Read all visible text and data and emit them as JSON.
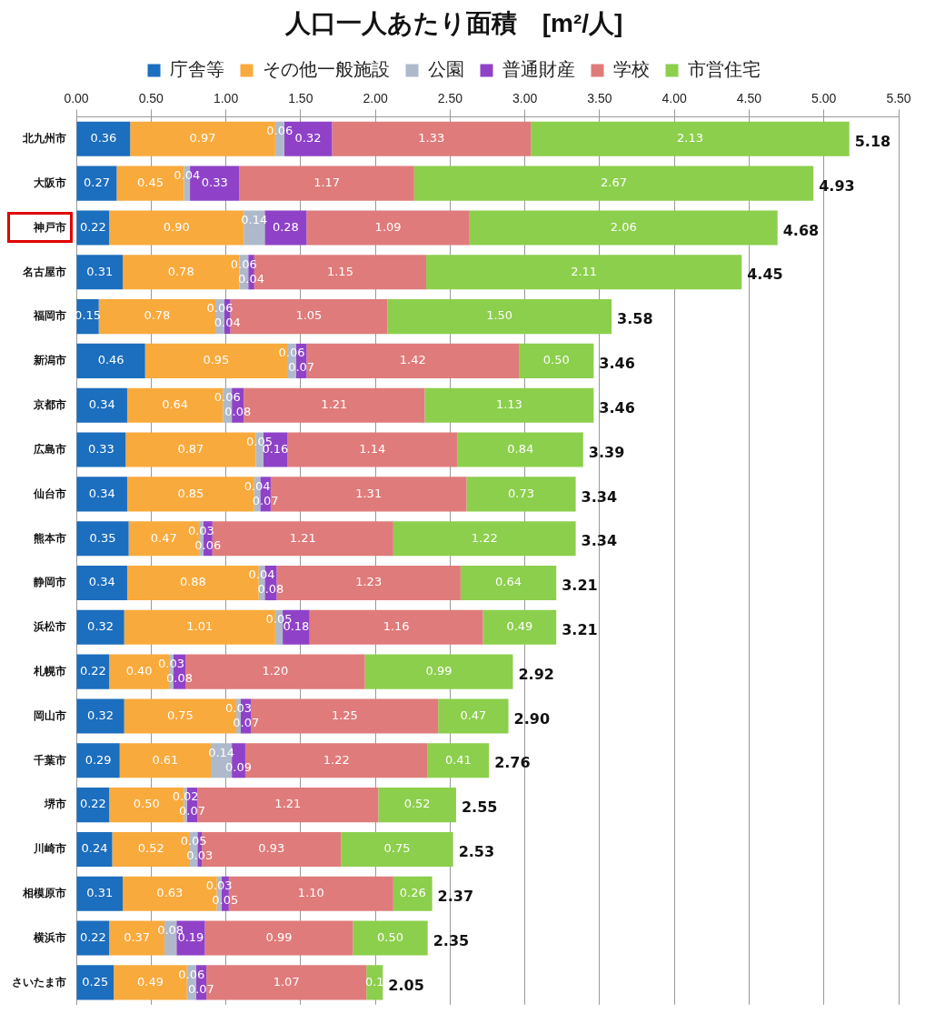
{
  "chart_data": {
    "type": "bar",
    "orientation": "horizontal",
    "stacked": true,
    "title": "人口一人あたり面積　[m²/人]",
    "categories": [
      "北九州市",
      "大阪市",
      "神戸市",
      "名古屋市",
      "福岡市",
      "新潟市",
      "京都市",
      "広島市",
      "仙台市",
      "熊本市",
      "静岡市",
      "浜松市",
      "札幌市",
      "岡山市",
      "千葉市",
      "堺市",
      "川崎市",
      "相模原市",
      "横浜市",
      "さいたま市"
    ],
    "series": [
      {
        "name": "庁舎等",
        "color": "#1c6ebe",
        "values": [
          0.36,
          0.27,
          0.22,
          0.31,
          0.15,
          0.46,
          0.34,
          0.33,
          0.34,
          0.35,
          0.34,
          0.32,
          0.22,
          0.32,
          0.29,
          0.22,
          0.24,
          0.31,
          0.22,
          0.25
        ],
        "value_labels": [
          "0.36",
          "0.27",
          "0.22",
          "0.31",
          "0.15",
          "0.46",
          "0.34",
          "0.33",
          "0.34",
          "0.35",
          "0.34",
          "0.32",
          "0.22",
          "0.32",
          "0.29",
          "0.22",
          "0.24",
          "0.31",
          "0.22",
          "0.25"
        ]
      },
      {
        "name": "その他一般施設",
        "color": "#f9aa3c",
        "values": [
          0.97,
          0.45,
          0.9,
          0.78,
          0.78,
          0.95,
          0.64,
          0.87,
          0.85,
          0.47,
          0.88,
          1.01,
          0.4,
          0.75,
          0.61,
          0.5,
          0.52,
          0.63,
          0.37,
          0.49
        ],
        "value_labels": [
          "0.97",
          "0.45",
          "0.90",
          "0.78",
          "0.78",
          "0.95",
          "0.64",
          "0.87",
          "0.85",
          "0.47",
          "0.88",
          "1.01",
          "0.40",
          "0.75",
          "0.61",
          "0.50",
          "0.52",
          "0.63",
          "0.37",
          "0.49"
        ]
      },
      {
        "name": "公園",
        "color": "#aebacb",
        "values": [
          0.06,
          0.04,
          0.14,
          0.06,
          0.06,
          0.06,
          0.06,
          0.05,
          0.04,
          0.03,
          0.04,
          0.05,
          0.03,
          0.03,
          0.14,
          0.02,
          0.05,
          0.03,
          0.08,
          0.06
        ],
        "value_labels": [
          "0.06",
          "0.04",
          "0.14",
          "0.06",
          "0.06",
          "0.06",
          "0.06",
          "0.05",
          "0.04",
          "0.03",
          "0.04",
          "0.05",
          "0.03",
          "0.03",
          "0.14",
          "0.02",
          "0.05",
          "0.03",
          "0.08",
          "0.06"
        ]
      },
      {
        "name": "普通財産",
        "color": "#8f42c8",
        "values": [
          0.32,
          0.33,
          0.28,
          0.04,
          0.04,
          0.07,
          0.08,
          0.16,
          0.07,
          0.06,
          0.08,
          0.18,
          0.08,
          0.07,
          0.09,
          0.07,
          0.03,
          0.05,
          0.19,
          0.07
        ],
        "value_labels": [
          "0.32",
          "0.33",
          "0.28",
          "0.04",
          "0.04",
          "0.07",
          "0.08",
          "0.16",
          "0.07",
          "0.06",
          "0.08",
          "0.18",
          "0.08",
          "0.07",
          "0.09",
          "0.07",
          "0.03",
          "0.05",
          "0.19",
          "0.07"
        ]
      },
      {
        "name": "学校",
        "color": "#e07b7b",
        "values": [
          1.33,
          1.17,
          1.09,
          1.15,
          1.05,
          1.42,
          1.21,
          1.14,
          1.31,
          1.21,
          1.23,
          1.16,
          1.2,
          1.25,
          1.22,
          1.21,
          0.93,
          1.1,
          0.99,
          1.07
        ],
        "value_labels": [
          "1.33",
          "1.17",
          "1.09",
          "1.15",
          "1.05",
          "1.42",
          "1.21",
          "1.14",
          "1.31",
          "1.21",
          "1.23",
          "1.16",
          "1.20",
          "1.25",
          "1.22",
          "1.21",
          "0.93",
          "1.10",
          "0.99",
          "1.07"
        ]
      },
      {
        "name": "市営住宅",
        "color": "#8ccf4c",
        "values": [
          2.13,
          2.67,
          2.06,
          2.11,
          1.5,
          0.5,
          1.13,
          0.84,
          0.73,
          1.22,
          0.64,
          0.49,
          0.99,
          0.47,
          0.41,
          0.52,
          0.75,
          0.26,
          0.5,
          0.11
        ],
        "value_labels": [
          "2.13",
          "2.67",
          "2.06",
          "2.11",
          "1.50",
          "0.50",
          "1.13",
          "0.84",
          "0.73",
          "1.22",
          "0.64",
          "0.49",
          "0.99",
          "0.47",
          "0.41",
          "0.52",
          "0.75",
          "0.26",
          "0.50",
          "0.1"
        ]
      }
    ],
    "totals": [
      "5.18",
      "4.93",
      "4.68",
      "4.45",
      "3.58",
      "3.46",
      "3.46",
      "3.39",
      "3.34",
      "3.34",
      "3.21",
      "3.21",
      "2.92",
      "2.90",
      "2.76",
      "2.55",
      "2.53",
      "2.37",
      "2.35",
      "2.05"
    ],
    "xlim": [
      0,
      5.5
    ],
    "xticks": [
      {
        "value": 0,
        "label": "0.00"
      },
      {
        "value": 0.5,
        "label": "0.50"
      },
      {
        "value": 1,
        "label": "1.00"
      },
      {
        "value": 1.5,
        "label": "1.50"
      },
      {
        "value": 2,
        "label": "2.00"
      },
      {
        "value": 2.5,
        "label": "2.50"
      },
      {
        "value": 3,
        "label": "3.00"
      },
      {
        "value": 3.5,
        "label": "3.50"
      },
      {
        "value": 4,
        "label": "4.00"
      },
      {
        "value": 4.5,
        "label": "4.50"
      },
      {
        "value": 5,
        "label": "5.00"
      },
      {
        "value": 5.5,
        "label": "5.50"
      }
    ],
    "grid": "x",
    "legend": "top"
  }
}
